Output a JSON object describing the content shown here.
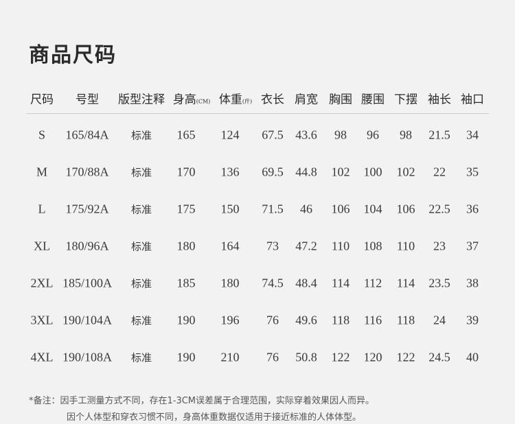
{
  "title": "商品尺码",
  "table": {
    "headers": [
      {
        "label": "尺码",
        "unit": ""
      },
      {
        "label": "号型",
        "unit": ""
      },
      {
        "label": "版型注释",
        "unit": ""
      },
      {
        "label": "身高",
        "unit": "(CM)"
      },
      {
        "label": "体重",
        "unit": "(斤)"
      },
      {
        "label": "衣长",
        "unit": ""
      },
      {
        "label": "肩宽",
        "unit": ""
      },
      {
        "label": "胸围",
        "unit": ""
      },
      {
        "label": "腰围",
        "unit": ""
      },
      {
        "label": "下摆",
        "unit": ""
      },
      {
        "label": "袖长",
        "unit": ""
      },
      {
        "label": "袖口",
        "unit": ""
      }
    ],
    "rows": [
      [
        "S",
        "165/84A",
        "标准",
        "165",
        "124",
        "67.5",
        "43.6",
        "98",
        "96",
        "98",
        "21.5",
        "34"
      ],
      [
        "M",
        "170/88A",
        "标准",
        "170",
        "136",
        "69.5",
        "44.8",
        "102",
        "100",
        "102",
        "22",
        "35"
      ],
      [
        "L",
        "175/92A",
        "标准",
        "175",
        "150",
        "71.5",
        "46",
        "106",
        "104",
        "106",
        "22.5",
        "36"
      ],
      [
        "XL",
        "180/96A",
        "标准",
        "180",
        "164",
        "73",
        "47.2",
        "110",
        "108",
        "110",
        "23",
        "37"
      ],
      [
        "2XL",
        "185/100A",
        "标准",
        "185",
        "180",
        "74.5",
        "48.4",
        "114",
        "112",
        "114",
        "23.5",
        "38"
      ],
      [
        "3XL",
        "190/104A",
        "标准",
        "190",
        "196",
        "76",
        "49.6",
        "118",
        "116",
        "118",
        "24",
        "39"
      ],
      [
        "4XL",
        "190/108A",
        "标准",
        "190",
        "210",
        "76",
        "50.8",
        "122",
        "120",
        "122",
        "24.5",
        "40"
      ]
    ]
  },
  "notes": [
    "*备注：因手工测量方式不同，存在1-3CM误差属于合理范围，实际穿着效果因人而异。",
    "因个人体型和穿衣习惯不同，身高体重数据仅适用于接近标准的人体体型。"
  ],
  "colors": {
    "background": "#f2f2f2",
    "divider": "#e3c9a3",
    "text": "#333333"
  }
}
